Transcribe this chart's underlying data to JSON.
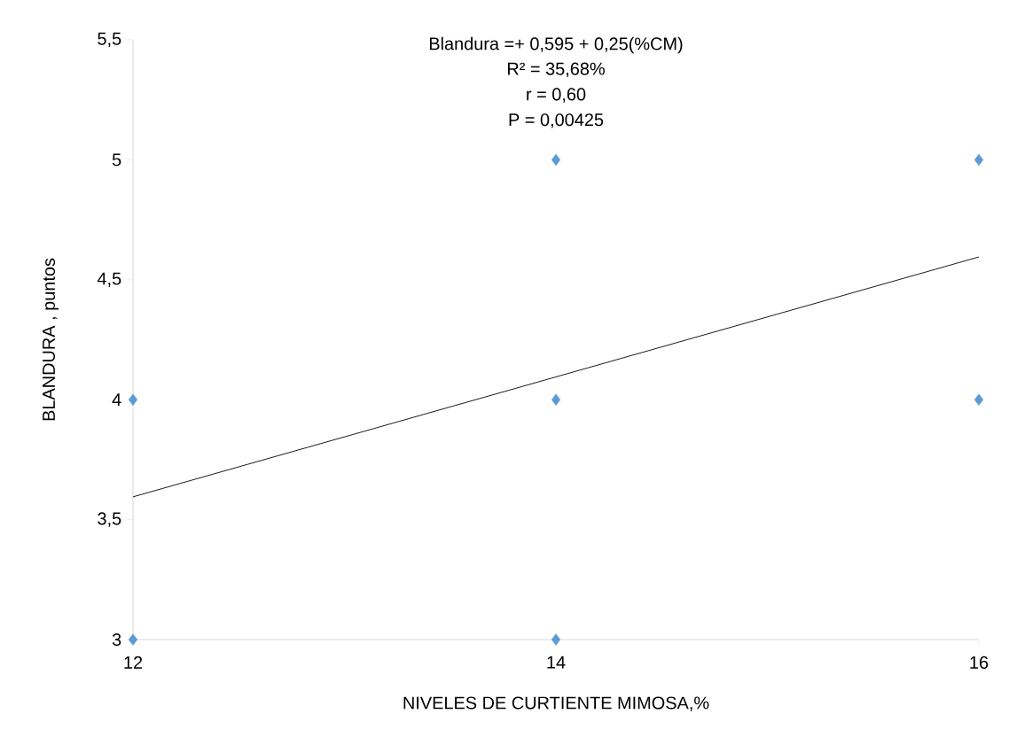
{
  "chart_data": {
    "type": "scatter",
    "xlabel": "NIVELES DE CURTIENTE MIMOSA,%",
    "ylabel": "BLANDURA , puntos",
    "annotations": [
      "Blandura  =+ 0,595 + 0,25(%CM)",
      "R² = 35,68%",
      "r =  0,60",
      "P = 0,00425"
    ],
    "xlim": [
      12,
      16
    ],
    "xticks": [
      12,
      14,
      16
    ],
    "ylim": [
      3,
      5.5
    ],
    "yticks": [
      {
        "value": 3,
        "label": "3"
      },
      {
        "value": 3.5,
        "label": "3,5"
      },
      {
        "value": 4,
        "label": "4"
      },
      {
        "value": 4.5,
        "label": "4,5"
      },
      {
        "value": 5,
        "label": "5"
      },
      {
        "value": 5.5,
        "label": "5,5"
      }
    ],
    "series": [
      {
        "color": "#5b9bd5",
        "marker": "diamond",
        "x": [
          12,
          12,
          14,
          14,
          14,
          16,
          16
        ],
        "values": [
          4,
          3,
          5,
          4,
          3,
          5,
          4
        ]
      },
      {
        "type": "line",
        "color": "#000000",
        "marker": "none",
        "x": [
          12,
          16
        ],
        "values": [
          3.595,
          4.595
        ]
      }
    ]
  }
}
